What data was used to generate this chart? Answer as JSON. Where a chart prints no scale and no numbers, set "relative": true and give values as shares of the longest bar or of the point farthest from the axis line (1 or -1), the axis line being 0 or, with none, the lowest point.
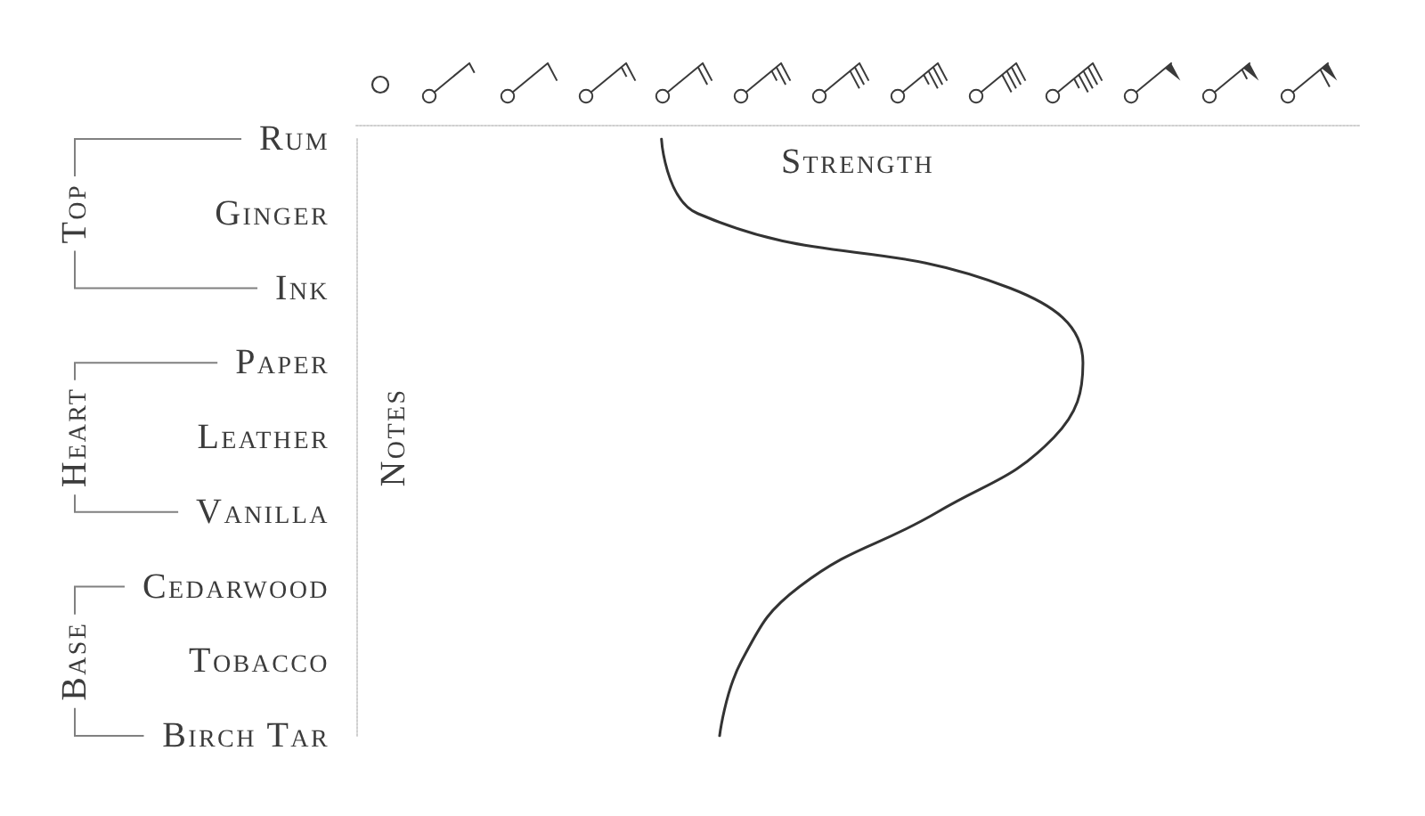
{
  "chart_data": {
    "type": "line",
    "orientation": "horizontal",
    "relative": true,
    "xlabel": "Strength",
    "ylabel": "Notes",
    "categories": [
      "Rum",
      "Ginger",
      "Ink",
      "Paper",
      "Leather",
      "Vanilla",
      "Cedarwood",
      "Tobacco",
      "Birch Tar"
    ],
    "series": [
      {
        "color": "#333333",
        "values": [
          0.42,
          0.47,
          0.9,
          1,
          0.96,
          0.8,
          0.61,
          0.53,
          0.5
        ]
      }
    ],
    "annotations": [
      "Top",
      "Heart",
      "Base"
    ],
    "marker": "none",
    "line_style": "solid"
  }
}
